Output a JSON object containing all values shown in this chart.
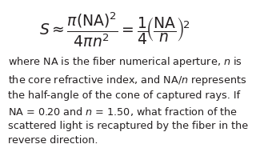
{
  "bg_color": "#ffffff",
  "text_color": "#231f20",
  "formula_line1": "$S \\approx \\dfrac{\\pi(\\mathrm{NA})^2}{4\\pi n^2} = \\dfrac{1}{4}\\!\\left(\\dfrac{\\mathrm{NA}}{n}\\right)^{\\!2}$",
  "body_text": "where NA is the fiber numerical aperture, $n$ is\nthe core refractive index, and NA/$n$ represents\nthe half-angle of the cone of captured rays. If\nNA = 0.20 and $n$ = 1.50, what fraction of the\nscattered light is recaptured by the fiber in the\nreverse direction.",
  "formula_fontsize": 13.5,
  "body_fontsize": 9.2,
  "figsize": [
    3.35,
    1.95
  ],
  "dpi": 100
}
